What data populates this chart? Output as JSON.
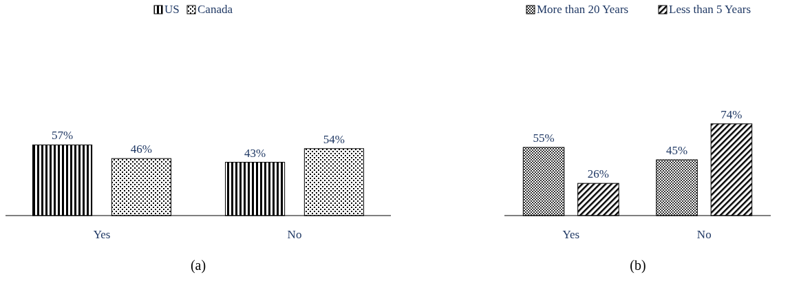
{
  "chart_data": [
    {
      "type": "bar",
      "categories": [
        "Yes",
        "No"
      ],
      "series": [
        {
          "name": "US",
          "color": "#000000",
          "values": [
            57,
            43
          ],
          "value_labels": [
            "57%",
            "43%"
          ]
        },
        {
          "name": "Canada",
          "color": "#000000",
          "values": [
            46,
            54
          ],
          "value_labels": [
            "46%",
            "54%"
          ]
        }
      ],
      "legend": "top",
      "annotations": [
        "(a)"
      ]
    },
    {
      "type": "bar",
      "categories": [
        "Yes",
        "No"
      ],
      "series": [
        {
          "name": "More than 20 Years",
          "color": "#000000",
          "values": [
            55,
            45
          ],
          "value_labels": [
            "55%",
            "45%"
          ]
        },
        {
          "name": "Less than 5 Years",
          "color": "#000000",
          "values": [
            26,
            74
          ],
          "value_labels": [
            "26%",
            "74%"
          ]
        }
      ],
      "legend": "top right",
      "annotations": [
        "(b)"
      ]
    }
  ]
}
